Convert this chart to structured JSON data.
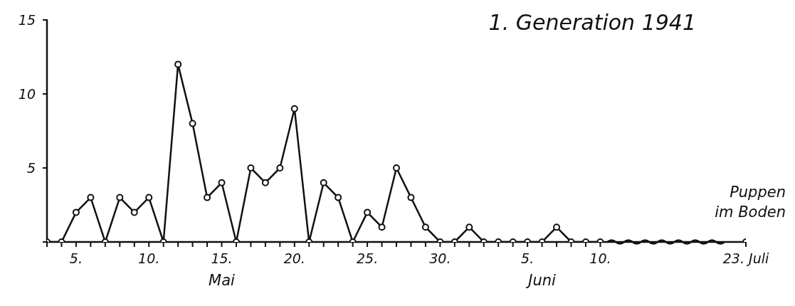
{
  "chart_data": {
    "type": "line",
    "title": "1. Generation 1941",
    "categories": [
      null,
      null,
      "5.",
      null,
      null,
      null,
      null,
      "10.",
      null,
      null,
      null,
      null,
      "15.",
      null,
      null,
      null,
      null,
      "20.",
      null,
      null,
      null,
      null,
      "25.",
      null,
      null,
      null,
      null,
      "30.",
      null,
      null,
      null,
      null,
      null,
      "5.",
      null,
      null,
      null,
      null,
      "10.",
      null,
      null,
      null,
      null,
      null,
      null,
      null,
      null,
      null,
      "23. Juli"
    ],
    "series": [
      {
        "color": "#111111",
        "values": [
          0,
          0,
          2,
          3,
          0,
          3,
          2,
          3,
          0,
          12,
          8,
          3,
          4,
          0,
          5,
          4,
          5,
          9,
          0,
          4,
          3,
          0,
          2,
          1,
          5,
          3,
          1,
          0,
          0,
          1,
          0,
          0,
          0,
          0,
          0,
          1,
          0,
          0,
          0,
          null,
          null,
          null,
          null,
          null,
          null,
          null,
          null,
          null,
          0
        ]
      }
    ],
    "ylim": [
      0,
      15
    ],
    "yticks": [
      {
        "value": 0,
        "label": null
      },
      5,
      10,
      15
    ],
    "marker": "circle",
    "line_style": "solid",
    "annotations": [
      "Puppen im Boden",
      "Mai",
      "Juni"
    ]
  }
}
